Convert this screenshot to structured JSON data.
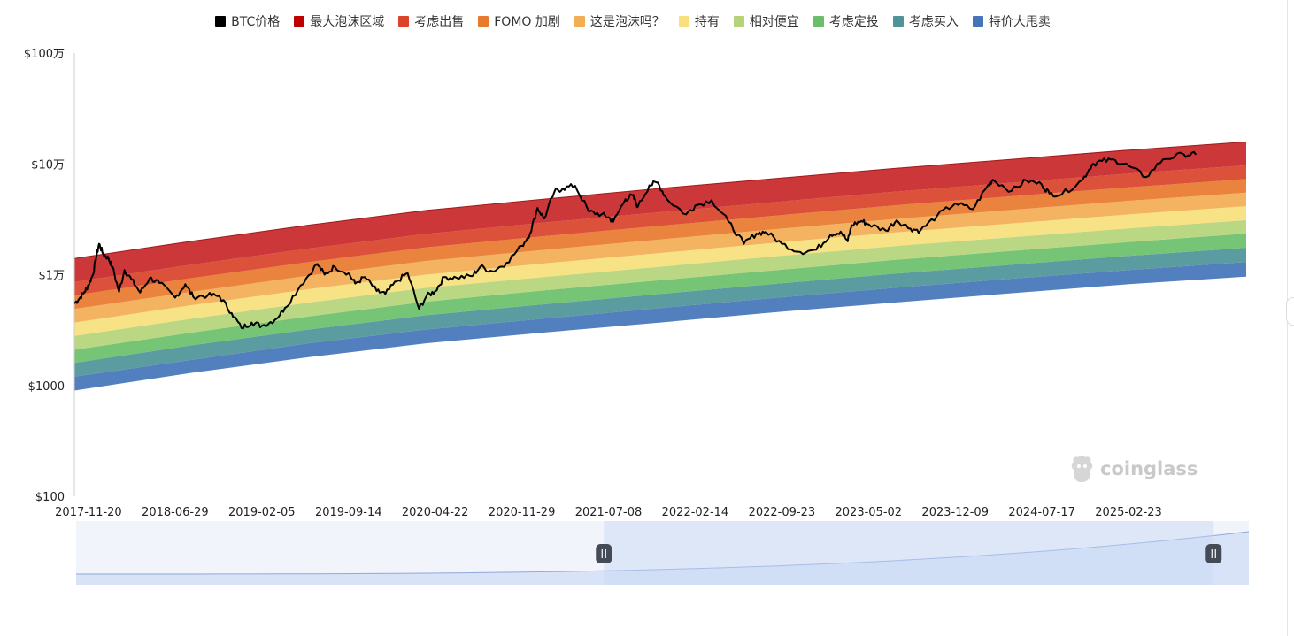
{
  "legend": [
    {
      "label": "BTC价格",
      "color": "#000000"
    },
    {
      "label": "最大泡沫区域",
      "color": "#c00000"
    },
    {
      "label": "考虑出售",
      "color": "#d9442b"
    },
    {
      "label": "FOMO 加剧",
      "color": "#e87a2e"
    },
    {
      "label": "这是泡沫吗？",
      "color": "#f2ad55"
    },
    {
      "label": "持有",
      "color": "#f7e07d"
    },
    {
      "label": "相对便宜",
      "color": "#b5d47a"
    },
    {
      "label": "考虑定投",
      "color": "#6cbf6a"
    },
    {
      "label": "考虑买入",
      "color": "#4f9499"
    },
    {
      "label": "特价大甩卖",
      "color": "#4575b8"
    }
  ],
  "watermark": "coinglass",
  "chart_data": {
    "type": "area",
    "y_scale": "log",
    "ylim": [
      100,
      1000000
    ],
    "y_ticks": [
      {
        "value": 100,
        "label": "$100"
      },
      {
        "value": 1000,
        "label": "$1000"
      },
      {
        "value": 10000,
        "label": "$1万"
      },
      {
        "value": 100000,
        "label": "$10万"
      },
      {
        "value": 1000000,
        "label": "$100万"
      }
    ],
    "xlim": [
      "2017-10-15",
      "2025-12-20"
    ],
    "x_ticks": [
      "2017-11-20",
      "2018-06-29",
      "2019-02-05",
      "2019-09-14",
      "2020-04-22",
      "2020-11-29",
      "2021-07-08",
      "2022-02-14",
      "2022-09-23",
      "2023-05-02",
      "2023-12-09",
      "2024-07-17",
      "2025-02-23"
    ],
    "rainbow_bands": {
      "x": [
        "2017-10-15",
        "2025-12-20"
      ],
      "band_colors_bottom_to_top": [
        "#4575b8",
        "#4f9499",
        "#6cbf6a",
        "#b5d47a",
        "#f7e07d",
        "#f2ad55",
        "#e87a2e",
        "#d9442b",
        "#c8292a"
      ],
      "boundaries_bottom_to_top": [
        {
          "curve": [
            [
              0,
              900
            ],
            [
              0.1,
              1300
            ],
            [
              0.2,
              1800
            ],
            [
              0.3,
              2400
            ],
            [
              0.4,
              3000
            ],
            [
              0.5,
              3700
            ],
            [
              0.6,
              4600
            ],
            [
              0.7,
              5600
            ],
            [
              0.8,
              6800
            ],
            [
              0.9,
              8200
            ],
            [
              1,
              9600
            ]
          ]
        },
        {
          "curve": [
            [
              0,
              1200
            ],
            [
              0.1,
              1700
            ],
            [
              0.2,
              2400
            ],
            [
              0.3,
              3200
            ],
            [
              0.4,
              4000
            ],
            [
              0.5,
              5000
            ],
            [
              0.6,
              6200
            ],
            [
              0.7,
              7600
            ],
            [
              0.8,
              9200
            ],
            [
              0.9,
              11000
            ],
            [
              1,
              13000
            ]
          ]
        },
        {
          "curve": [
            [
              0,
              1600
            ],
            [
              0.1,
              2300
            ],
            [
              0.2,
              3200
            ],
            [
              0.3,
              4300
            ],
            [
              0.4,
              5400
            ],
            [
              0.5,
              6700
            ],
            [
              0.6,
              8300
            ],
            [
              0.7,
              10200
            ],
            [
              0.8,
              12300
            ],
            [
              0.9,
              14800
            ],
            [
              1,
              17500
            ]
          ]
        },
        {
          "curve": [
            [
              0,
              2100
            ],
            [
              0.1,
              3000
            ],
            [
              0.2,
              4200
            ],
            [
              0.3,
              5700
            ],
            [
              0.4,
              7200
            ],
            [
              0.5,
              8900
            ],
            [
              0.6,
              11000
            ],
            [
              0.7,
              13600
            ],
            [
              0.8,
              16400
            ],
            [
              0.9,
              19700
            ],
            [
              1,
              23500
            ]
          ]
        },
        {
          "curve": [
            [
              0,
              2800
            ],
            [
              0.1,
              4000
            ],
            [
              0.2,
              5600
            ],
            [
              0.3,
              7600
            ],
            [
              0.4,
              9500
            ],
            [
              0.5,
              11800
            ],
            [
              0.6,
              14700
            ],
            [
              0.7,
              18100
            ],
            [
              0.8,
              21800
            ],
            [
              0.9,
              26200
            ],
            [
              1,
              31000
            ]
          ]
        },
        {
          "curve": [
            [
              0,
              3700
            ],
            [
              0.1,
              5300
            ],
            [
              0.2,
              7400
            ],
            [
              0.3,
              10000
            ],
            [
              0.4,
              12600
            ],
            [
              0.5,
              15700
            ],
            [
              0.6,
              19500
            ],
            [
              0.7,
              24000
            ],
            [
              0.8,
              29000
            ],
            [
              0.9,
              35000
            ],
            [
              1,
              41500
            ]
          ]
        },
        {
          "curve": [
            [
              0,
              4900
            ],
            [
              0.1,
              7000
            ],
            [
              0.2,
              9800
            ],
            [
              0.3,
              13300
            ],
            [
              0.4,
              16700
            ],
            [
              0.5,
              20800
            ],
            [
              0.6,
              25800
            ],
            [
              0.7,
              31800
            ],
            [
              0.8,
              38500
            ],
            [
              0.9,
              46400
            ],
            [
              1,
              55000
            ]
          ]
        },
        {
          "curve": [
            [
              0,
              6500
            ],
            [
              0.1,
              9300
            ],
            [
              0.2,
              13000
            ],
            [
              0.3,
              17600
            ],
            [
              0.4,
              22200
            ],
            [
              0.5,
              27600
            ],
            [
              0.6,
              34200
            ],
            [
              0.7,
              42200
            ],
            [
              0.8,
              51000
            ],
            [
              0.9,
              61500
            ],
            [
              1,
              73000
            ]
          ]
        },
        {
          "curve": [
            [
              0,
              8600
            ],
            [
              0.1,
              12300
            ],
            [
              0.2,
              17200
            ],
            [
              0.3,
              23300
            ],
            [
              0.4,
              29400
            ],
            [
              0.5,
              36600
            ],
            [
              0.6,
              45400
            ],
            [
              0.7,
              56000
            ],
            [
              0.8,
              67700
            ],
            [
              0.9,
              81600
            ],
            [
              1,
              97000
            ]
          ]
        },
        {
          "curve": [
            [
              0,
              14000
            ],
            [
              0.1,
              20000
            ],
            [
              0.2,
              28000
            ],
            [
              0.3,
              38000
            ],
            [
              0.4,
              48000
            ],
            [
              0.5,
              60000
            ],
            [
              0.6,
              74000
            ],
            [
              0.7,
              91000
            ],
            [
              0.8,
              110000
            ],
            [
              0.9,
              133000
            ],
            [
              1,
              158000
            ]
          ]
        }
      ]
    },
    "series": [
      {
        "name": "BTC价格",
        "points": [
          [
            "2017-10-15",
            5500
          ],
          [
            "2017-10-28",
            6100
          ],
          [
            "2017-11-10",
            7000
          ],
          [
            "2017-11-20",
            8100
          ],
          [
            "2017-12-01",
            9900
          ],
          [
            "2017-12-10",
            14500
          ],
          [
            "2017-12-17",
            19000
          ],
          [
            "2017-12-27",
            15500
          ],
          [
            "2018-01-10",
            14000
          ],
          [
            "2018-01-20",
            11800
          ],
          [
            "2018-02-06",
            7000
          ],
          [
            "2018-02-20",
            11000
          ],
          [
            "2018-03-10",
            9000
          ],
          [
            "2018-04-01",
            6900
          ],
          [
            "2018-04-25",
            9300
          ],
          [
            "2018-05-20",
            8400
          ],
          [
            "2018-06-29",
            6200
          ],
          [
            "2018-07-25",
            8200
          ],
          [
            "2018-08-14",
            6300
          ],
          [
            "2018-09-20",
            6500
          ],
          [
            "2018-10-20",
            6400
          ],
          [
            "2018-11-20",
            4500
          ],
          [
            "2018-12-15",
            3300
          ],
          [
            "2019-01-10",
            3700
          ],
          [
            "2019-02-05",
            3450
          ],
          [
            "2019-03-10",
            3900
          ],
          [
            "2019-04-05",
            5000
          ],
          [
            "2019-05-15",
            8000
          ],
          [
            "2019-06-26",
            12500
          ],
          [
            "2019-07-15",
            10000
          ],
          [
            "2019-08-10",
            11800
          ],
          [
            "2019-09-14",
            10300
          ],
          [
            "2019-10-01",
            8300
          ],
          [
            "2019-10-26",
            9500
          ],
          [
            "2019-11-25",
            7100
          ],
          [
            "2019-12-17",
            6700
          ],
          [
            "2020-01-15",
            8700
          ],
          [
            "2020-02-12",
            10300
          ],
          [
            "2020-03-12",
            4900
          ],
          [
            "2020-03-31",
            6400
          ],
          [
            "2020-04-22",
            7100
          ],
          [
            "2020-05-15",
            9500
          ],
          [
            "2020-06-15",
            9400
          ],
          [
            "2020-07-25",
            9700
          ],
          [
            "2020-08-15",
            11800
          ],
          [
            "2020-09-15",
            10700
          ],
          [
            "2020-10-21",
            12800
          ],
          [
            "2020-11-29",
            18200
          ],
          [
            "2020-12-20",
            23500
          ],
          [
            "2021-01-08",
            40000
          ],
          [
            "2021-01-25",
            32000
          ],
          [
            "2021-02-20",
            56000
          ],
          [
            "2021-03-13",
            60000
          ],
          [
            "2021-04-14",
            63500
          ],
          [
            "2021-05-19",
            37000
          ],
          [
            "2021-06-20",
            35000
          ],
          [
            "2021-07-08",
            33000
          ],
          [
            "2021-07-20",
            30000
          ],
          [
            "2021-08-20",
            48000
          ],
          [
            "2021-09-07",
            52000
          ],
          [
            "2021-09-21",
            41000
          ],
          [
            "2021-10-20",
            64000
          ],
          [
            "2021-11-10",
            68000
          ],
          [
            "2021-12-04",
            48000
          ],
          [
            "2022-01-22",
            35000
          ],
          [
            "2022-02-14",
            42000
          ],
          [
            "2022-03-28",
            47000
          ],
          [
            "2022-05-10",
            30000
          ],
          [
            "2022-06-18",
            19000
          ],
          [
            "2022-07-20",
            23500
          ],
          [
            "2022-08-13",
            24400
          ],
          [
            "2022-09-23",
            19000
          ],
          [
            "2022-11-09",
            16000
          ],
          [
            "2022-12-20",
            16800
          ],
          [
            "2023-01-25",
            23000
          ],
          [
            "2023-02-20",
            24500
          ],
          [
            "2023-03-10",
            20000
          ],
          [
            "2023-03-20",
            28000
          ],
          [
            "2023-04-14",
            30500
          ],
          [
            "2023-05-02",
            28500
          ],
          [
            "2023-06-15",
            25000
          ],
          [
            "2023-07-13",
            31000
          ],
          [
            "2023-08-17",
            26000
          ],
          [
            "2023-09-11",
            25000
          ],
          [
            "2023-10-24",
            34000
          ],
          [
            "2023-12-09",
            44000
          ],
          [
            "2024-01-23",
            39000
          ],
          [
            "2024-02-28",
            62000
          ],
          [
            "2024-03-14",
            72000
          ],
          [
            "2024-05-01",
            57000
          ],
          [
            "2024-06-07",
            71000
          ],
          [
            "2024-07-17",
            65000
          ],
          [
            "2024-08-05",
            54000
          ],
          [
            "2024-09-06",
            53000
          ],
          [
            "2024-10-29",
            72000
          ],
          [
            "2024-11-22",
            99000
          ],
          [
            "2024-12-17",
            106000
          ],
          [
            "2025-01-20",
            108000
          ],
          [
            "2025-02-23",
            96000
          ],
          [
            "2025-04-08",
            76000
          ],
          [
            "2025-05-22",
            110000
          ],
          [
            "2025-07-14",
            122000
          ],
          [
            "2025-08-14",
            121000
          ]
        ]
      }
    ],
    "zoom_window": {
      "start_fraction": 0.45,
      "end_fraction": 0.97
    }
  }
}
